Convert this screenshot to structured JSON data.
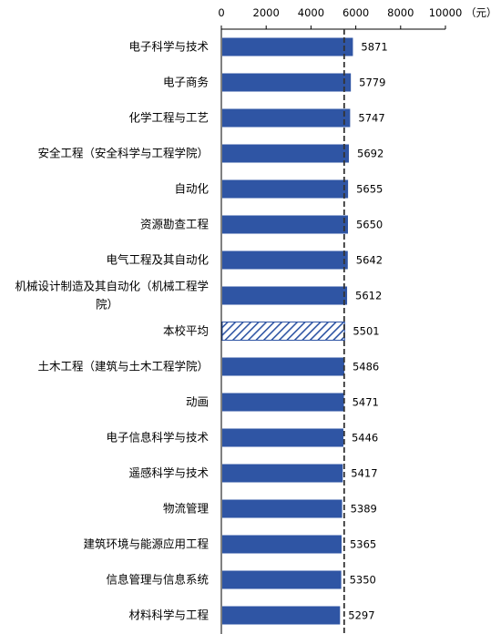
{
  "chart_data": {
    "type": "bar",
    "orientation": "horizontal",
    "unit": "（元）",
    "xlim": [
      0,
      10000
    ],
    "xticks": [
      "0",
      "2000",
      "4000",
      "6000",
      "8000",
      "10000"
    ],
    "reference_line": {
      "category": "本校平均",
      "value": 5501,
      "style": "dashed"
    },
    "categories": [
      [
        "电子科学与技术"
      ],
      [
        "电子商务"
      ],
      [
        "化学工程与工艺"
      ],
      [
        "安全工程（安全科学与工程学院）"
      ],
      [
        "自动化"
      ],
      [
        "资源勘查工程"
      ],
      [
        "电气工程及其自动化"
      ],
      [
        "机械设计制造及其自动化（机械工程学",
        "院）"
      ],
      [
        "本校平均"
      ],
      [
        "土木工程（建筑与土木工程学院）"
      ],
      [
        "动画"
      ],
      [
        "电子信息科学与技术"
      ],
      [
        "遥感科学与技术"
      ],
      [
        "物流管理"
      ],
      [
        "建筑环境与能源应用工程"
      ],
      [
        "信息管理与信息系统"
      ],
      [
        "材料科学与工程"
      ]
    ],
    "values": [
      5871,
      5779,
      5747,
      5692,
      5655,
      5650,
      5642,
      5612,
      5501,
      5486,
      5471,
      5446,
      5417,
      5389,
      5365,
      5350,
      5297
    ],
    "value_labels": [
      "5871",
      "5779",
      "5747",
      "5692",
      "5655",
      "5650",
      "5642",
      "5612",
      "5501",
      "5486",
      "5471",
      "5446",
      "5417",
      "5389",
      "5365",
      "5350",
      "5297"
    ],
    "highlight_category": "本校平均",
    "colors": {
      "bar": "#2f55a4",
      "highlight_bar": "#2f55a4",
      "axis": "#000000",
      "reference_line": "#333333"
    }
  }
}
